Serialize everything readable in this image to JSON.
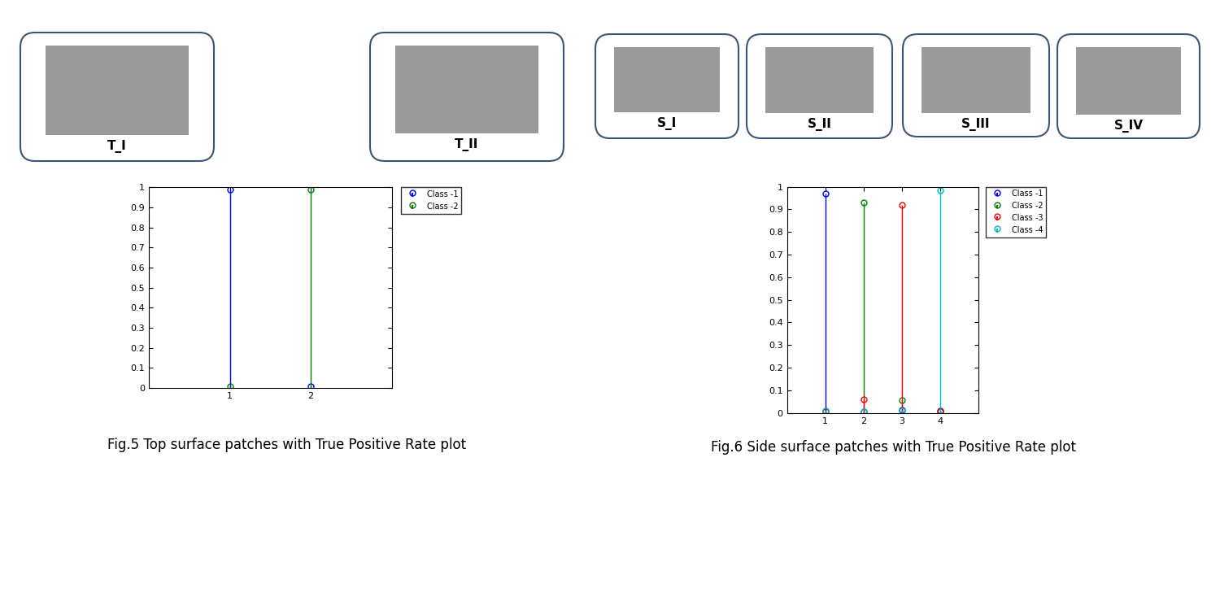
{
  "chart_data": [
    {
      "type": "stem",
      "caption": "Fig.5 Top surface patches with True Positive Rate plot",
      "patch_labels": [
        "T_I",
        "T_II"
      ],
      "x": [
        1,
        2
      ],
      "xlim": [
        0,
        3
      ],
      "xticks": [
        1,
        2
      ],
      "ylim": [
        0,
        1
      ],
      "yticks": [
        0,
        0.1,
        0.2,
        0.3,
        0.4,
        0.5,
        0.6,
        0.7,
        0.8,
        0.9,
        1
      ],
      "legend": "upper left",
      "marker": "circle",
      "series": [
        {
          "name": "Class -1",
          "color": "#0000ff",
          "values": [
            0.99,
            0.01
          ]
        },
        {
          "name": "Class -2",
          "color": "#008000",
          "values": [
            0.01,
            0.99
          ]
        }
      ]
    },
    {
      "type": "stem",
      "caption": "Fig.6 Side surface patches with True Positive Rate plot",
      "patch_labels": [
        "S_I",
        "S_II",
        "S_III",
        "S_IV"
      ],
      "x": [
        1,
        2,
        3,
        4
      ],
      "xlim": [
        0,
        5
      ],
      "xticks": [
        1,
        2,
        3,
        4
      ],
      "ylim": [
        0,
        1
      ],
      "yticks": [
        0,
        0.1,
        0.2,
        0.3,
        0.4,
        0.5,
        0.6,
        0.7,
        0.8,
        0.9,
        1
      ],
      "legend": "upper left",
      "marker": "circle",
      "series": [
        {
          "name": "Class -1",
          "color": "#0000ff",
          "values": [
            0.97,
            0.005,
            0.015,
            0.01
          ]
        },
        {
          "name": "Class -2",
          "color": "#008000",
          "values": [
            0.01,
            0.93,
            0.055,
            0.005
          ]
        },
        {
          "name": "Class -3",
          "color": "#ff0000",
          "values": [
            0.005,
            0.06,
            0.92,
            0.005
          ]
        },
        {
          "name": "Class -4",
          "color": "#00bfbf",
          "values": [
            0.01,
            0.005,
            0.01,
            0.985
          ]
        }
      ]
    }
  ]
}
